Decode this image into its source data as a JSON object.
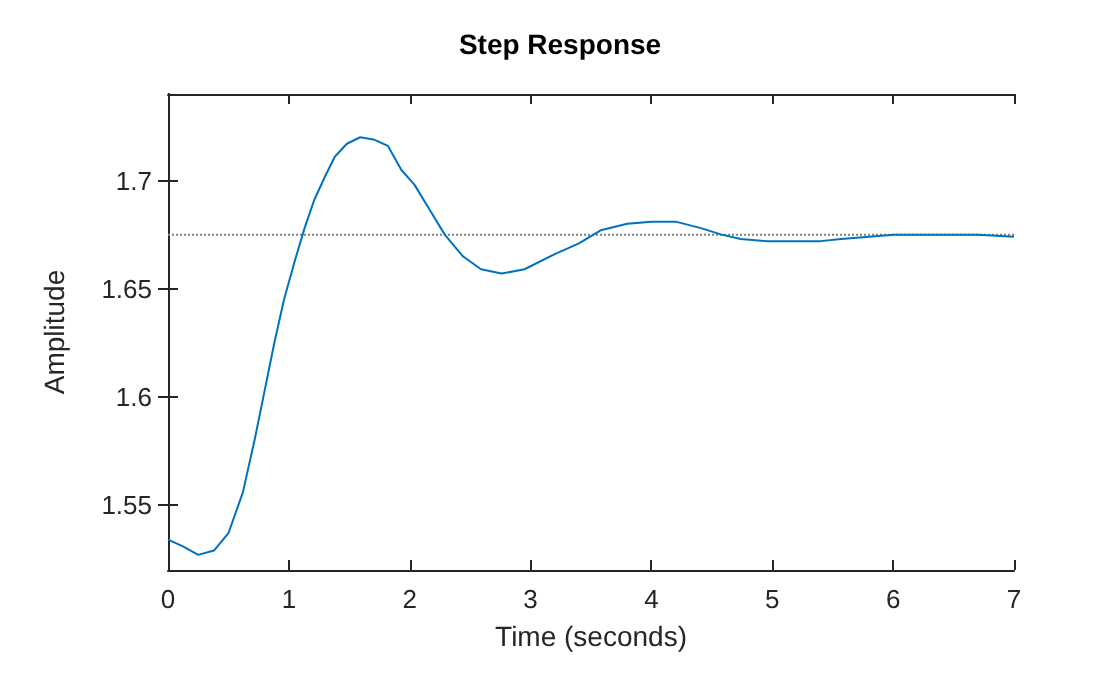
{
  "chart_data": {
    "type": "line",
    "title": "Step Response",
    "xlabel": "Time (seconds)",
    "ylabel": "Amplitude",
    "xlim": [
      0,
      7
    ],
    "xticks": [
      0,
      1,
      2,
      3,
      4,
      5,
      6,
      7
    ],
    "ylim": [
      1.52,
      1.74
    ],
    "yticks": [
      1.55,
      1.6,
      1.65,
      1.7
    ],
    "grid": false,
    "marker": "none",
    "line_style": "solid",
    "series": [
      {
        "color": "#0072bd",
        "x": [
          0,
          0.12,
          0.25,
          0.38,
          0.5,
          0.62,
          0.72,
          0.8,
          0.88,
          0.96,
          1.05,
          1.13,
          1.21,
          1.3,
          1.38,
          1.48,
          1.59,
          1.7,
          1.82,
          1.93,
          2.04,
          2.16,
          2.29,
          2.44,
          2.59,
          2.76,
          2.95,
          3.2,
          3.4,
          3.58,
          3.8,
          4.0,
          4.2,
          4.41,
          4.58,
          4.74,
          4.95,
          5.18,
          5.4,
          5.57,
          5.8,
          6.01,
          6.25,
          6.45,
          6.7,
          7.0
        ],
        "values": [
          1.534,
          1.531,
          1.527,
          1.529,
          1.537,
          1.556,
          1.581,
          1.603,
          1.625,
          1.645,
          1.663,
          1.678,
          1.691,
          1.702,
          1.711,
          1.717,
          1.72,
          1.719,
          1.716,
          1.705,
          1.698,
          1.687,
          1.675,
          1.665,
          1.659,
          1.657,
          1.659,
          1.666,
          1.671,
          1.677,
          1.68,
          1.681,
          1.681,
          1.678,
          1.675,
          1.673,
          1.672,
          1.672,
          1.672,
          1.673,
          1.674,
          1.675,
          1.675,
          1.675,
          1.675,
          1.674
        ]
      }
    ],
    "ref_lines": [
      {
        "axis": "y",
        "value": 1.675,
        "color": "#808080",
        "line_style": "dotted"
      }
    ]
  }
}
